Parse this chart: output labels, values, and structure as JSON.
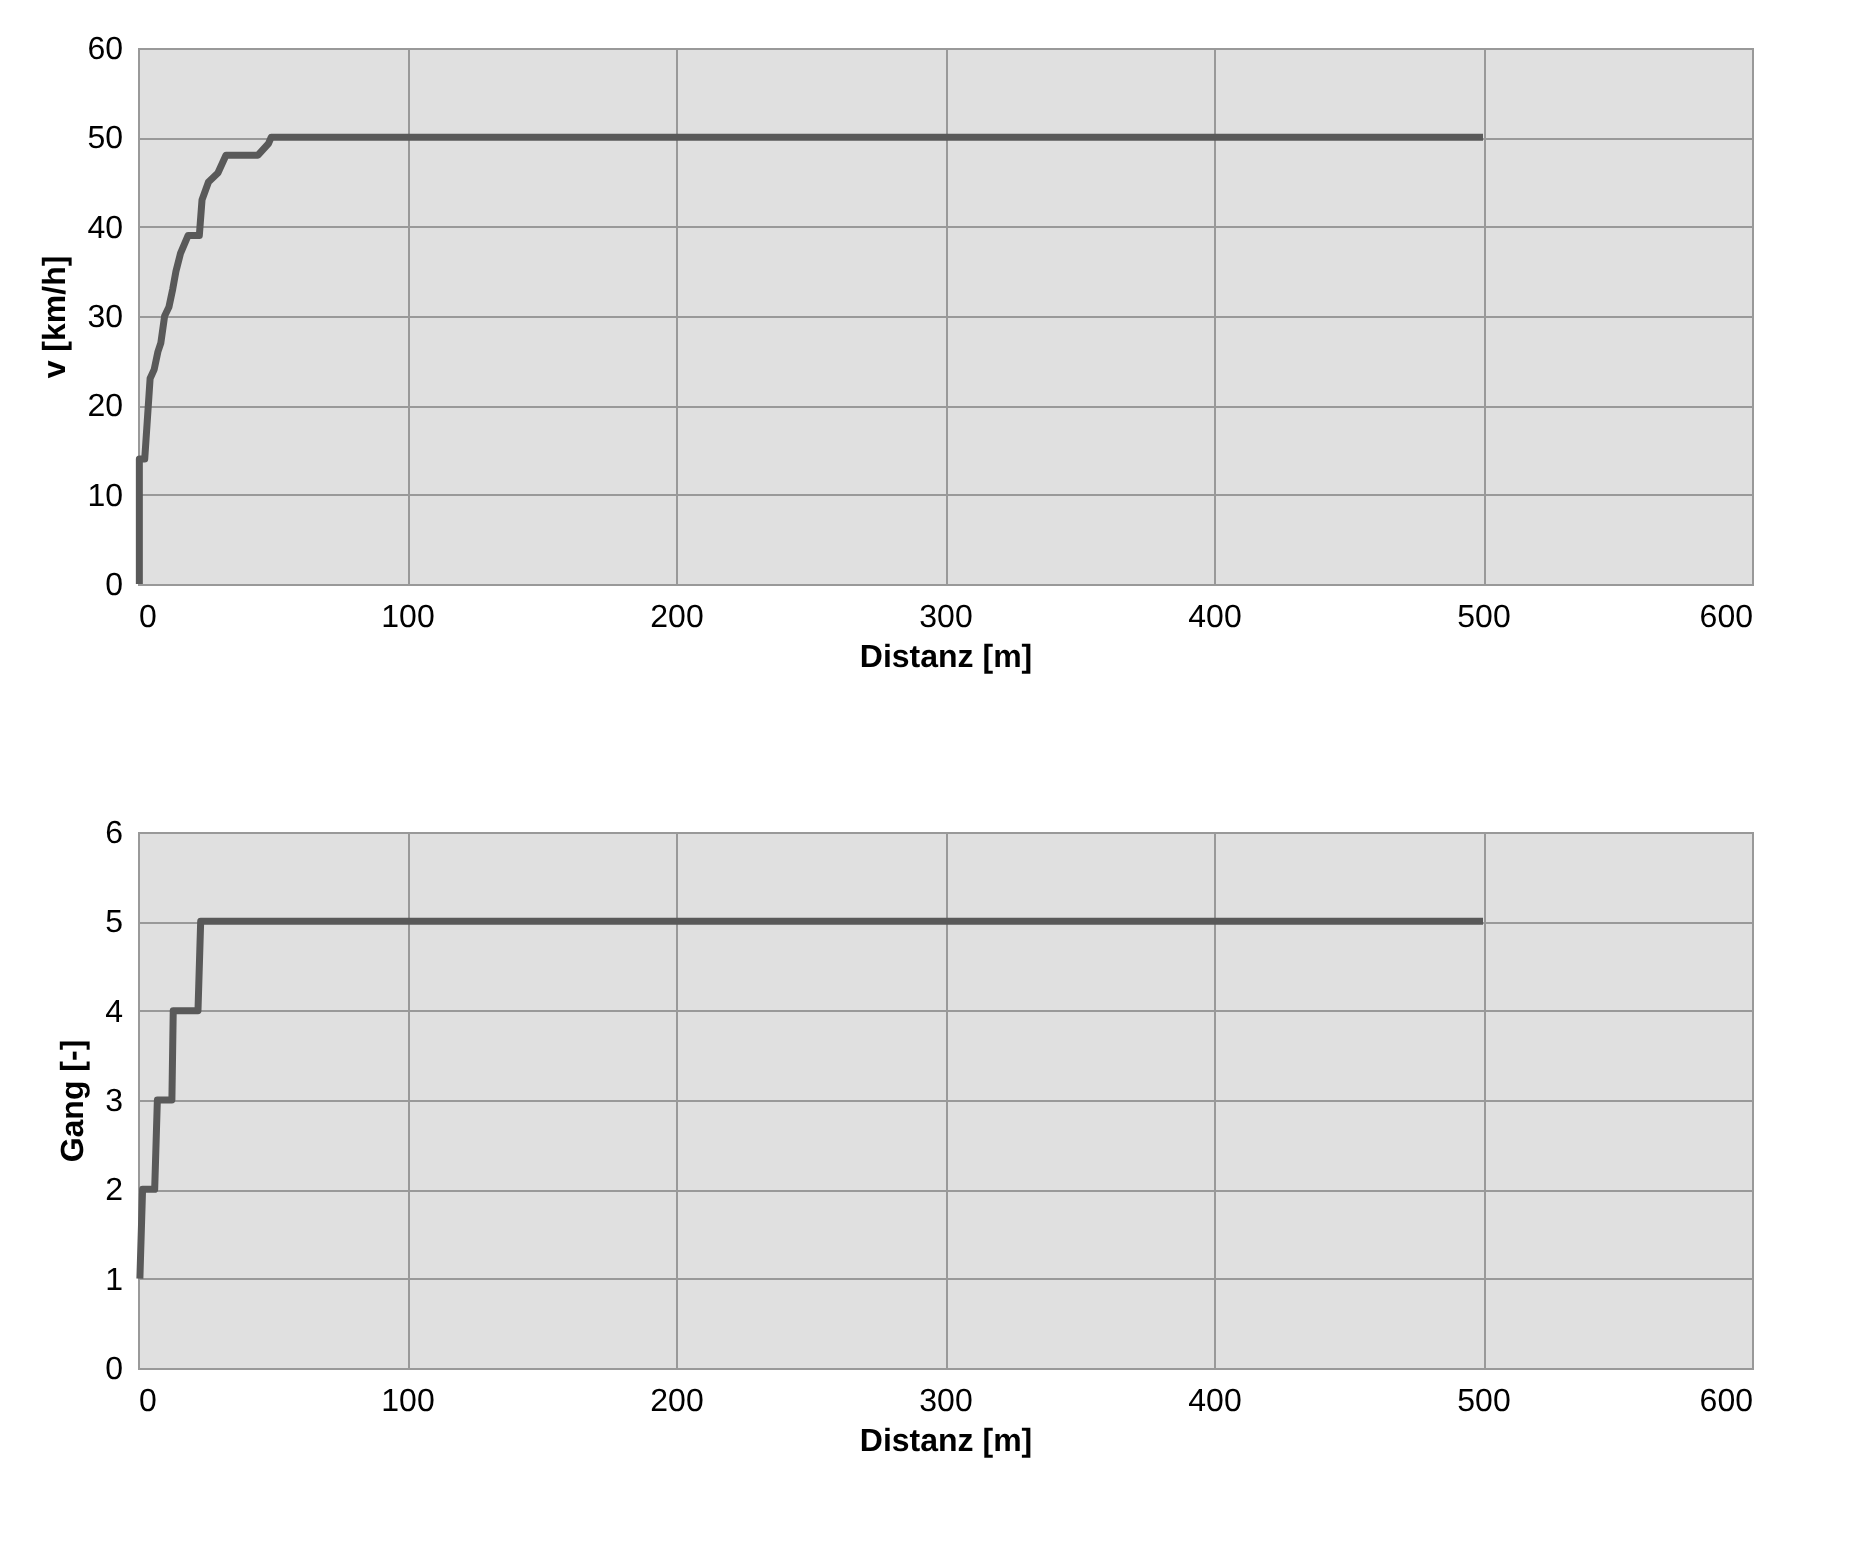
{
  "chart_data": [
    {
      "type": "line",
      "xlabel": "Distanz [m]",
      "ylabel": "v [km/h]",
      "xlim": [
        0,
        600
      ],
      "xticks": [
        0,
        100,
        200,
        300,
        400,
        500,
        600
      ],
      "ylim": [
        0,
        60
      ],
      "yticks": [
        0,
        10,
        20,
        30,
        40,
        50,
        60
      ],
      "grid": true,
      "series": [
        {
          "color": "#595959",
          "x": [
            0.5,
            0.5,
            2.5,
            4.5,
            6,
            7.4,
            8.5,
            9.9,
            11.5,
            12.9,
            14.1,
            15.8,
            18.6,
            22.8,
            23.8,
            26.2,
            29.7,
            32.7,
            44.6,
            48.5,
            49.5,
            500
          ],
          "values": [
            0,
            14,
            14,
            23,
            24,
            26,
            27,
            30,
            31,
            33,
            35,
            37,
            39,
            39,
            43,
            45,
            46,
            48,
            48,
            49.3,
            50,
            50
          ]
        }
      ]
    },
    {
      "type": "line",
      "xlabel": "Distanz [m]",
      "ylabel": "Gang [-]",
      "xlim": [
        0,
        600
      ],
      "xticks": [
        0,
        100,
        200,
        300,
        400,
        500,
        600
      ],
      "ylim": [
        0,
        6
      ],
      "yticks": [
        0,
        1,
        2,
        3,
        4,
        5,
        6
      ],
      "grid": true,
      "series": [
        {
          "color": "#595959",
          "x": [
            0.7,
            1.7,
            6.2,
            7.2,
            12.6,
            13.1,
            22.3,
            23.3,
            500
          ],
          "values": [
            1,
            2,
            2,
            3,
            3,
            4,
            4,
            5,
            5
          ]
        }
      ]
    }
  ]
}
